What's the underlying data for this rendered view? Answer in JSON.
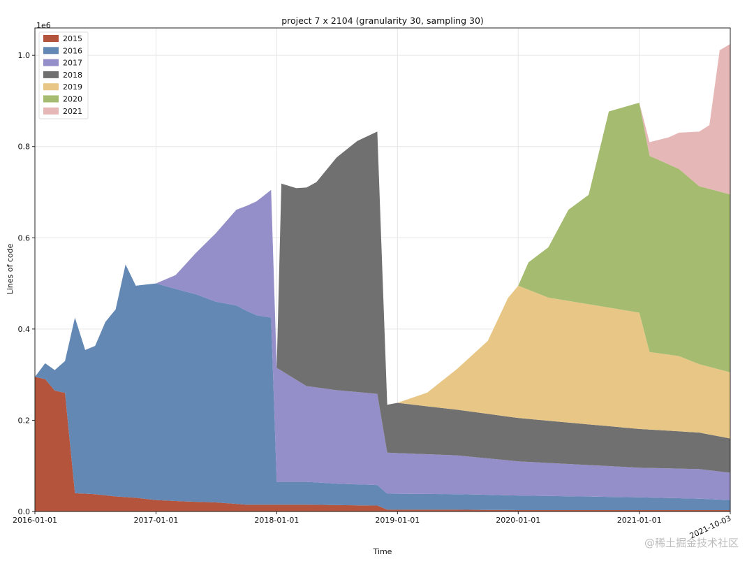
{
  "chart_data": {
    "type": "area",
    "title": "project 7 x 2104 (granularity 30, sampling 30)",
    "xlabel": "Time",
    "ylabel": "Lines of code",
    "y_offset_label": "1e6",
    "xlim": [
      "2016-01-01",
      "2021-10-03"
    ],
    "ylim": [
      0,
      1.06
    ],
    "yticks": [
      0.0,
      0.2,
      0.4,
      0.6,
      0.8,
      1.0
    ],
    "ytick_labels": [
      "0.0",
      "0.2",
      "0.4",
      "0.6",
      "0.8",
      "1.0"
    ],
    "xticks": [
      "2016-01-01",
      "2017-01-01",
      "2018-01-01",
      "2019-01-01",
      "2020-01-01",
      "2021-01-01",
      "2021-10-03"
    ],
    "xtick_labels": [
      "2016-01-01",
      "2017-01-01",
      "2018-01-01",
      "2019-01-01",
      "2020-01-01",
      "2021-01-01",
      "2021-10-03"
    ],
    "grid": true,
    "legend_position": "top-left",
    "stacked": true,
    "series": [
      {
        "name": "2015",
        "color": "#b5543c",
        "points": [
          [
            "2016-01-01",
            0.295
          ],
          [
            "2016-02-01",
            0.29
          ],
          [
            "2016-03-01",
            0.265
          ],
          [
            "2016-04-01",
            0.26
          ],
          [
            "2016-05-01",
            0.04
          ],
          [
            "2016-07-01",
            0.038
          ],
          [
            "2016-09-01",
            0.033
          ],
          [
            "2016-11-01",
            0.03
          ],
          [
            "2017-01-01",
            0.025
          ],
          [
            "2017-04-01",
            0.022
          ],
          [
            "2017-07-01",
            0.02
          ],
          [
            "2017-10-01",
            0.015
          ],
          [
            "2018-01-01",
            0.015
          ],
          [
            "2018-04-01",
            0.015
          ],
          [
            "2018-07-01",
            0.014
          ],
          [
            "2018-11-01",
            0.013
          ],
          [
            "2018-12-01",
            0.004
          ],
          [
            "2019-03-01",
            0.004
          ],
          [
            "2019-07-01",
            0.004
          ],
          [
            "2020-01-01",
            0.003
          ],
          [
            "2020-07-01",
            0.003
          ],
          [
            "2021-01-01",
            0.003
          ],
          [
            "2021-07-01",
            0.003
          ],
          [
            "2021-10-03",
            0.003
          ]
        ]
      },
      {
        "name": "2016",
        "color": "#6388b4",
        "points": [
          [
            "2016-01-01",
            0.0
          ],
          [
            "2016-02-01",
            0.035
          ],
          [
            "2016-03-01",
            0.045
          ],
          [
            "2016-04-01",
            0.07
          ],
          [
            "2016-05-01",
            0.385
          ],
          [
            "2016-06-01",
            0.315
          ],
          [
            "2016-07-01",
            0.325
          ],
          [
            "2016-08-01",
            0.38
          ],
          [
            "2016-09-01",
            0.41
          ],
          [
            "2016-10-01",
            0.51
          ],
          [
            "2016-11-01",
            0.465
          ],
          [
            "2016-12-01",
            0.47
          ],
          [
            "2017-01-01",
            0.475
          ],
          [
            "2017-03-01",
            0.465
          ],
          [
            "2017-05-01",
            0.455
          ],
          [
            "2017-07-01",
            0.44
          ],
          [
            "2017-09-01",
            0.435
          ],
          [
            "2017-11-01",
            0.415
          ],
          [
            "2017-12-15",
            0.41
          ],
          [
            "2018-01-01",
            0.05
          ],
          [
            "2018-04-01",
            0.05
          ],
          [
            "2018-07-01",
            0.047
          ],
          [
            "2018-11-01",
            0.045
          ],
          [
            "2018-12-01",
            0.035
          ],
          [
            "2019-07-01",
            0.034
          ],
          [
            "2020-01-01",
            0.032
          ],
          [
            "2020-07-01",
            0.03
          ],
          [
            "2021-01-01",
            0.028
          ],
          [
            "2021-07-01",
            0.025
          ],
          [
            "2021-10-03",
            0.022
          ]
        ]
      },
      {
        "name": "2017",
        "color": "#948fc8",
        "points": [
          [
            "2016-01-01",
            0.0
          ],
          [
            "2017-01-01",
            0.0
          ],
          [
            "2017-03-01",
            0.03
          ],
          [
            "2017-05-01",
            0.09
          ],
          [
            "2017-07-01",
            0.15
          ],
          [
            "2017-09-01",
            0.21
          ],
          [
            "2017-11-01",
            0.25
          ],
          [
            "2017-12-15",
            0.28
          ],
          [
            "2018-01-01",
            0.25
          ],
          [
            "2018-04-01",
            0.21
          ],
          [
            "2018-07-01",
            0.205
          ],
          [
            "2018-11-01",
            0.2
          ],
          [
            "2018-12-01",
            0.09
          ],
          [
            "2019-07-01",
            0.085
          ],
          [
            "2020-01-01",
            0.075
          ],
          [
            "2020-07-01",
            0.07
          ],
          [
            "2021-01-01",
            0.065
          ],
          [
            "2021-07-01",
            0.065
          ],
          [
            "2021-10-03",
            0.06
          ]
        ]
      },
      {
        "name": "2018",
        "color": "#707070",
        "points": [
          [
            "2016-01-01",
            0.0
          ],
          [
            "2018-01-01",
            0.0
          ],
          [
            "2018-01-15",
            0.41
          ],
          [
            "2018-03-01",
            0.42
          ],
          [
            "2018-05-01",
            0.45
          ],
          [
            "2018-07-01",
            0.51
          ],
          [
            "2018-09-01",
            0.55
          ],
          [
            "2018-11-01",
            0.575
          ],
          [
            "2018-12-01",
            0.105
          ],
          [
            "2019-01-01",
            0.11
          ],
          [
            "2019-07-01",
            0.1
          ],
          [
            "2020-01-01",
            0.095
          ],
          [
            "2020-07-01",
            0.09
          ],
          [
            "2021-01-01",
            0.085
          ],
          [
            "2021-07-01",
            0.08
          ],
          [
            "2021-10-03",
            0.075
          ]
        ]
      },
      {
        "name": "2019",
        "color": "#e8c786",
        "points": [
          [
            "2016-01-01",
            0.0
          ],
          [
            "2019-01-01",
            0.0
          ],
          [
            "2019-04-01",
            0.03
          ],
          [
            "2019-07-01",
            0.09
          ],
          [
            "2019-10-01",
            0.16
          ],
          [
            "2019-12-01",
            0.26
          ],
          [
            "2020-01-01",
            0.29
          ],
          [
            "2020-04-01",
            0.27
          ],
          [
            "2020-07-01",
            0.265
          ],
          [
            "2020-10-01",
            0.26
          ],
          [
            "2021-01-01",
            0.255
          ],
          [
            "2021-02-01",
            0.17
          ],
          [
            "2021-05-01",
            0.165
          ],
          [
            "2021-07-01",
            0.15
          ],
          [
            "2021-10-03",
            0.145
          ]
        ]
      },
      {
        "name": "2020",
        "color": "#a5bb70",
        "points": [
          [
            "2016-01-01",
            0.0
          ],
          [
            "2020-01-01",
            0.0
          ],
          [
            "2020-02-01",
            0.06
          ],
          [
            "2020-04-01",
            0.11
          ],
          [
            "2020-06-01",
            0.2
          ],
          [
            "2020-08-01",
            0.24
          ],
          [
            "2020-10-01",
            0.43
          ],
          [
            "2021-01-01",
            0.46
          ],
          [
            "2021-02-01",
            0.43
          ],
          [
            "2021-05-01",
            0.41
          ],
          [
            "2021-07-01",
            0.39
          ],
          [
            "2021-10-03",
            0.39
          ]
        ]
      },
      {
        "name": "2021",
        "color": "#e5b7b6",
        "points": [
          [
            "2016-01-01",
            0.0
          ],
          [
            "2021-01-01",
            0.0
          ],
          [
            "2021-02-01",
            0.03
          ],
          [
            "2021-04-01",
            0.06
          ],
          [
            "2021-06-01",
            0.1
          ],
          [
            "2021-08-01",
            0.14
          ],
          [
            "2021-09-01",
            0.31
          ],
          [
            "2021-10-03",
            0.33
          ]
        ]
      }
    ]
  },
  "watermark": "@稀土掘金技术社区"
}
